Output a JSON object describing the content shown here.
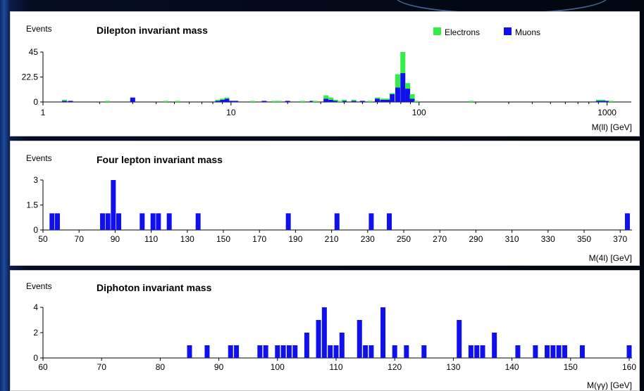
{
  "colors": {
    "electrons": "#33ee44",
    "muons": "#1010ee",
    "axis": "#000000"
  },
  "chart_data": [
    {
      "type": "bar",
      "title": "Dilepton invariant mass",
      "ylabel": "Events",
      "xlabel": "M(ll) [GeV]",
      "xscale": "log",
      "xlim": [
        1,
        1300
      ],
      "ylim": [
        0,
        45
      ],
      "yticks": [
        "45",
        "22.5",
        "0"
      ],
      "ytick_values": [
        45,
        22.5,
        0
      ],
      "xticks": [
        "1",
        "10",
        "100",
        "1000"
      ],
      "xtick_values": [
        1,
        10,
        100,
        1000
      ],
      "legend": [
        "Electrons",
        "Muons"
      ],
      "legend_position": "top-right",
      "series": [
        {
          "name": "Muons",
          "x": [
            1.3,
            1.4,
            3.0,
            8.5,
            9.0,
            9.5,
            10.0,
            10.6,
            15.0,
            20.0,
            27.0,
            32.0,
            34.0,
            36.0,
            40.0,
            45.0,
            50.0,
            60.0,
            64.0,
            68.0,
            72.0,
            77.0,
            82.0,
            87.0,
            92.0,
            900.0,
            950.0,
            1000.0
          ],
          "values": [
            1,
            1,
            4,
            1,
            2,
            3,
            1,
            1,
            1,
            1,
            1,
            3,
            2,
            1,
            1,
            1,
            1,
            3,
            2,
            2,
            7,
            13,
            26,
            12,
            3,
            1,
            1,
            1
          ]
        },
        {
          "name": "Electrons",
          "x": [
            1.3,
            2.2,
            4.5,
            5.2,
            8.5,
            9.0,
            9.5,
            13.0,
            17.0,
            18.0,
            24.0,
            28.0,
            32.0,
            34.0,
            36.0,
            38.0,
            40.0,
            45.0,
            55.0,
            60.0,
            64.0,
            68.0,
            72.0,
            77.0,
            82.0,
            87.0,
            92.0,
            97.0,
            190.0,
            900.0,
            950.0,
            1050.0
          ],
          "values": [
            1,
            1,
            1,
            1,
            1,
            1,
            1,
            1,
            1,
            1,
            1,
            1,
            3,
            2,
            1,
            1,
            1,
            1,
            1,
            1,
            1,
            1,
            1,
            12,
            19,
            5,
            4,
            1,
            1,
            1,
            1,
            1
          ]
        }
      ]
    },
    {
      "type": "bar",
      "title": "Four lepton invariant mass",
      "ylabel": "Events",
      "xlabel": "M(4l) [GeV]",
      "xlim": [
        50,
        375
      ],
      "ylim": [
        0,
        3
      ],
      "yticks": [
        "3",
        "1.5",
        "0"
      ],
      "ytick_values": [
        3,
        1.5,
        0
      ],
      "xticks": [
        "50",
        "70",
        "90",
        "110",
        "130",
        "150",
        "170",
        "190",
        "210",
        "230",
        "250",
        "270",
        "290",
        "310",
        "330",
        "350",
        "370"
      ],
      "xtick_values": [
        50,
        70,
        90,
        110,
        130,
        150,
        170,
        190,
        210,
        230,
        250,
        270,
        290,
        310,
        330,
        350,
        370
      ],
      "series": [
        {
          "name": "Muons",
          "x": [
            55,
            58,
            83,
            86,
            89,
            92,
            105,
            111,
            114,
            120,
            136,
            186,
            213,
            232,
            242,
            374
          ],
          "values": [
            1,
            1,
            1,
            1,
            3,
            1,
            1,
            1,
            1,
            1,
            1,
            1,
            1,
            1,
            1,
            1
          ]
        }
      ]
    },
    {
      "type": "bar",
      "title": "Diphoton invariant mass",
      "ylabel": "Events",
      "xlabel": "M(γγ) [GeV]",
      "xlim": [
        60,
        160
      ],
      "ylim": [
        0,
        4
      ],
      "yticks": [
        "4",
        "2",
        "0"
      ],
      "ytick_values": [
        4,
        2,
        0
      ],
      "xticks": [
        "60",
        "70",
        "80",
        "90",
        "100",
        "110",
        "120",
        "130",
        "140",
        "150",
        "160"
      ],
      "xtick_values": [
        60,
        70,
        80,
        90,
        100,
        110,
        120,
        130,
        140,
        150,
        160
      ],
      "series": [
        {
          "name": "Muons",
          "x": [
            85,
            88,
            92,
            93,
            97,
            98,
            100,
            101,
            102,
            103,
            105,
            107,
            108,
            109,
            110,
            111,
            114,
            115,
            116,
            118,
            120,
            122,
            125,
            131,
            133,
            134,
            135,
            137,
            141,
            144,
            146,
            147,
            148,
            149,
            152,
            160
          ],
          "values": [
            1,
            1,
            1,
            1,
            1,
            1,
            1,
            1,
            1,
            1,
            2,
            3,
            4,
            1,
            1,
            2,
            3,
            1,
            1,
            4,
            1,
            1,
            1,
            3,
            1,
            1,
            1,
            2,
            1,
            1,
            1,
            1,
            1,
            1,
            1,
            1
          ]
        }
      ]
    }
  ]
}
